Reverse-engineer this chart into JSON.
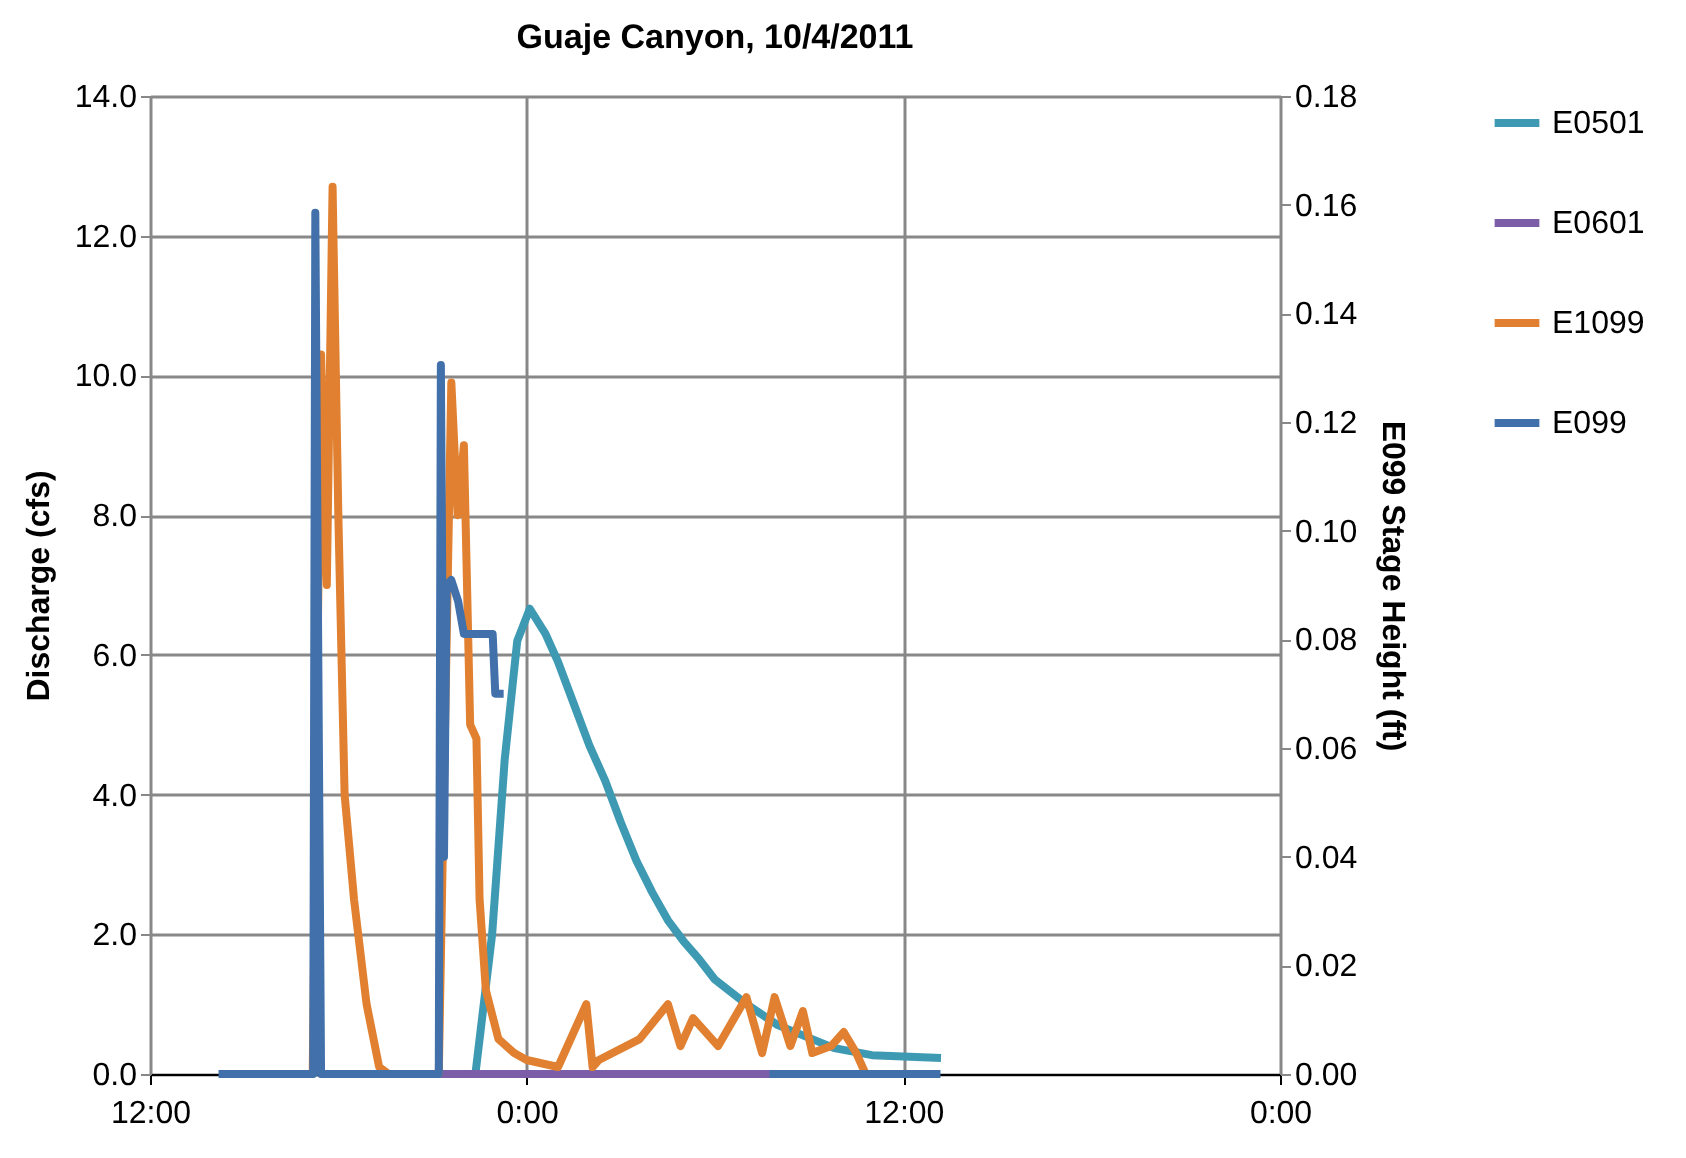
{
  "chart_data": {
    "type": "line",
    "title": "Guaje Canyon, 10/4/2011",
    "ylabel": "Discharge (cfs)",
    "y2label": "E099 Stage Height (ft)",
    "xlim": [
      "2011-10-04T12:00",
      "2011-10-06T00:00"
    ],
    "xticks": [
      {
        "value": "2011-10-04T12:00",
        "label": "12:00"
      },
      {
        "value": "2011-10-05T00:00",
        "label": "0:00"
      },
      {
        "value": "2011-10-05T12:00",
        "label": "12:00"
      },
      {
        "value": "2011-10-06T00:00",
        "label": "0:00"
      }
    ],
    "ylim": [
      0,
      14
    ],
    "yticks": [
      {
        "value": 0,
        "label": "0.0"
      },
      {
        "value": 2,
        "label": "2.0"
      },
      {
        "value": 4,
        "label": "4.0"
      },
      {
        "value": 6,
        "label": "6.0"
      },
      {
        "value": 8,
        "label": "8.0"
      },
      {
        "value": 10,
        "label": "10.0"
      },
      {
        "value": 12,
        "label": "12.0"
      },
      {
        "value": 14,
        "label": "14.0"
      }
    ],
    "y2lim": [
      0,
      0.18
    ],
    "y2ticks": [
      {
        "value": 0,
        "label": "0.00"
      },
      {
        "value": 0.02,
        "label": "0.02"
      },
      {
        "value": 0.04,
        "label": "0.04"
      },
      {
        "value": 0.06,
        "label": "0.06"
      },
      {
        "value": 0.08,
        "label": "0.08"
      },
      {
        "value": 0.1,
        "label": "0.10"
      },
      {
        "value": 0.12,
        "label": "0.12"
      },
      {
        "value": 0.14,
        "label": "0.14"
      },
      {
        "value": 0.16,
        "label": "0.16"
      },
      {
        "value": 0.18,
        "label": "0.18"
      }
    ],
    "grid": true,
    "legend": "right",
    "marker": "none",
    "line_style": "solid",
    "series": [
      {
        "name": "E0501",
        "color": "#3e9ab3",
        "x": [
          "2011-10-04T22:22",
          "2011-10-04T22:54",
          "2011-10-04T23:18",
          "2011-10-04T23:42",
          "2011-10-05T00:06",
          "2011-10-05T00:36",
          "2011-10-05T01:00",
          "2011-10-05T01:30",
          "2011-10-05T02:00",
          "2011-10-05T02:30",
          "2011-10-05T03:00",
          "2011-10-05T03:30",
          "2011-10-05T04:00",
          "2011-10-05T04:30",
          "2011-10-05T05:00",
          "2011-10-05T05:30",
          "2011-10-05T06:00",
          "2011-10-05T07:00",
          "2011-10-05T08:00",
          "2011-10-05T09:48",
          "2011-10-05T11:00",
          "2011-10-05T13:12"
        ],
        "values": [
          0,
          2.0,
          4.5,
          6.2,
          6.66,
          6.3,
          5.9,
          5.3,
          4.7,
          4.2,
          3.6,
          3.05,
          2.6,
          2.2,
          1.9,
          1.64,
          1.35,
          1.0,
          0.7,
          0.37,
          0.27,
          0.23
        ]
      },
      {
        "name": "E0601",
        "color": "#7b5ea7",
        "x": [
          "2011-10-04T17:27",
          "2011-10-05T09:30"
        ],
        "values": [
          0,
          0
        ]
      },
      {
        "name": "E1099",
        "color": "#e08030",
        "x": [
          "2011-10-04T17:11",
          "2011-10-04T17:27",
          "2011-10-04T17:38",
          "2011-10-04T17:49",
          "2011-10-04T18:00",
          "2011-10-04T18:12",
          "2011-10-04T18:30",
          "2011-10-04T18:54",
          "2011-10-04T19:18",
          "2011-10-04T19:36",
          "2011-10-04T20:00",
          "2011-10-04T21:12",
          "2011-10-04T21:36",
          "2011-10-04T21:48",
          "2011-10-04T22:00",
          "2011-10-04T22:12",
          "2011-10-04T22:24",
          "2011-10-04T22:30",
          "2011-10-04T22:42",
          "2011-10-04T23:06",
          "2011-10-04T23:36",
          "2011-10-05T00:00",
          "2011-10-05T01:00",
          "2011-10-05T01:54",
          "2011-10-05T02:06",
          "2011-10-05T02:18",
          "2011-10-05T03:36",
          "2011-10-05T04:30",
          "2011-10-05T04:54",
          "2011-10-05T05:06",
          "2011-10-05T05:18",
          "2011-10-05T06:06",
          "2011-10-05T07:00",
          "2011-10-05T07:30",
          "2011-10-05T07:54",
          "2011-10-05T08:24",
          "2011-10-05T08:48",
          "2011-10-05T09:06",
          "2011-10-05T09:42",
          "2011-10-05T10:06",
          "2011-10-05T10:30",
          "2011-10-05T10:48"
        ],
        "values": [
          0,
          10.3,
          7.0,
          12.7,
          8.0,
          4.0,
          2.5,
          1.0,
          0.1,
          0,
          0,
          0,
          9.9,
          8.0,
          9.0,
          5.0,
          4.8,
          2.5,
          1.2,
          0.5,
          0.3,
          0.2,
          0.1,
          1.0,
          0.1,
          0.2,
          0.5,
          1.0,
          0.4,
          0.6,
          0.8,
          0.4,
          1.1,
          0.3,
          1.1,
          0.4,
          0.9,
          0.3,
          0.4,
          0.6,
          0.3,
          0
        ]
      },
      {
        "name": "E099",
        "color": "#4170aa",
        "axis": "y2",
        "x": [
          "2011-10-04T14:11",
          "2011-10-04T17:12",
          "2011-10-04T17:16",
          "2011-10-04T17:27",
          "2011-10-04T21:12",
          "2011-10-04T21:16",
          "2011-10-04T21:22",
          "2011-10-04T21:27",
          "2011-10-04T21:36",
          "2011-10-04T21:49",
          "2011-10-04T22:00",
          "2011-10-04T22:11",
          "2011-10-04T22:55",
          "2011-10-04T23:00",
          "2011-10-04T23:05",
          "2011-10-04T23:16",
          null,
          "2011-10-05T07:44",
          "2011-10-05T13:11"
        ],
        "values": [
          0,
          0,
          0.1585,
          0,
          0,
          0.1305,
          0.04,
          0.09,
          0.0909,
          0.087,
          0.081,
          0.081,
          0.081,
          0.07,
          0.07,
          0.07,
          null,
          0,
          0
        ]
      }
    ]
  }
}
